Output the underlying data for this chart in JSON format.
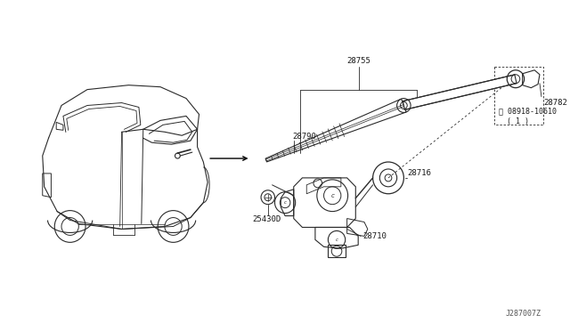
{
  "background_color": "#ffffff",
  "fig_width": 6.4,
  "fig_height": 3.72,
  "dpi": 100,
  "diagram_id": "J287007Z",
  "line_color": "#2a2a2a",
  "text_color": "#1a1a1a",
  "font_size": 6.5,
  "label_28755": "28755",
  "label_28790": "28790",
  "label_28782": "28782",
  "label_08918": "© 08918-10610\n( 1 )",
  "label_28716": "28716",
  "label_28710": "28710",
  "label_25430D": "25430D"
}
